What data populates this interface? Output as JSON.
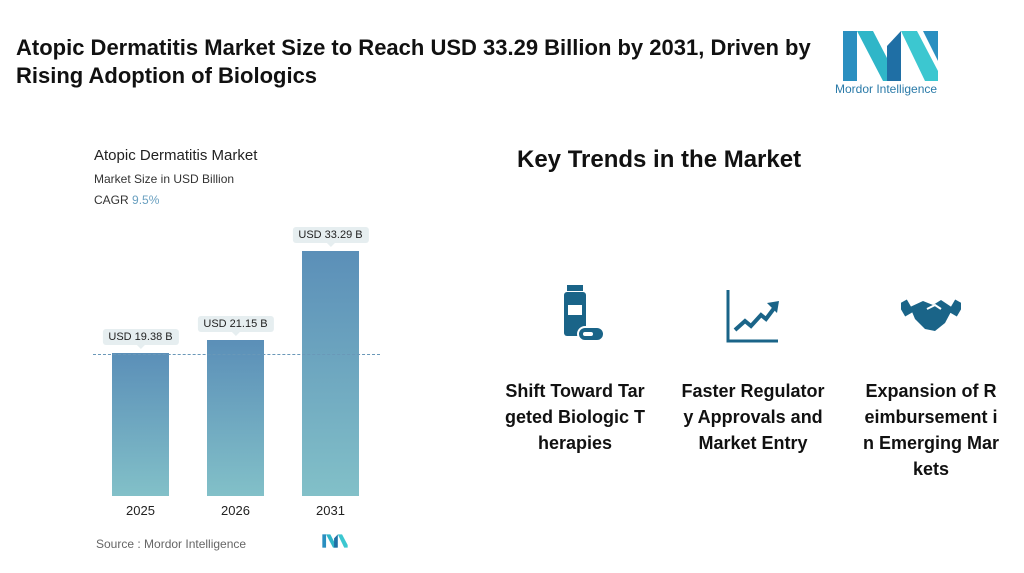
{
  "title": "Atopic Dermatitis Market Size to Reach USD 33.29 Billion by 2031, Driven by Rising Adoption of Biologics",
  "logo_text": "Mordor Intelligence",
  "chart_data": {
    "type": "bar",
    "title": "Atopic Dermatitis Market",
    "subtitle": "Market Size in USD Billion",
    "cagr_label": "CAGR",
    "cagr_value": "9.5%",
    "categories": [
      "2025",
      "2026",
      "2031"
    ],
    "values": [
      19.38,
      21.15,
      33.29
    ],
    "data_labels": [
      "USD 19.38 B",
      "USD 21.15 B",
      "USD 33.29 B"
    ],
    "ylim": [
      0,
      33.29
    ],
    "grid": false,
    "colors": {
      "bar_top": "#5b8fb8",
      "bar_bottom": "#82c0c8"
    }
  },
  "source": "Source :  Mordor Intelligence",
  "trends": {
    "title": "Key Trends in the Market",
    "items": [
      {
        "icon": "medicine-bottle-icon",
        "label": "Shift Toward Targeted Biologic Therapies"
      },
      {
        "icon": "rising-chart-icon",
        "label": "Faster Regulatory Approvals and Market Entry"
      },
      {
        "icon": "handshake-icon",
        "label": "Expansion of Reimbursement in Emerging Markets"
      }
    ],
    "icon_color": "#1a6488"
  }
}
